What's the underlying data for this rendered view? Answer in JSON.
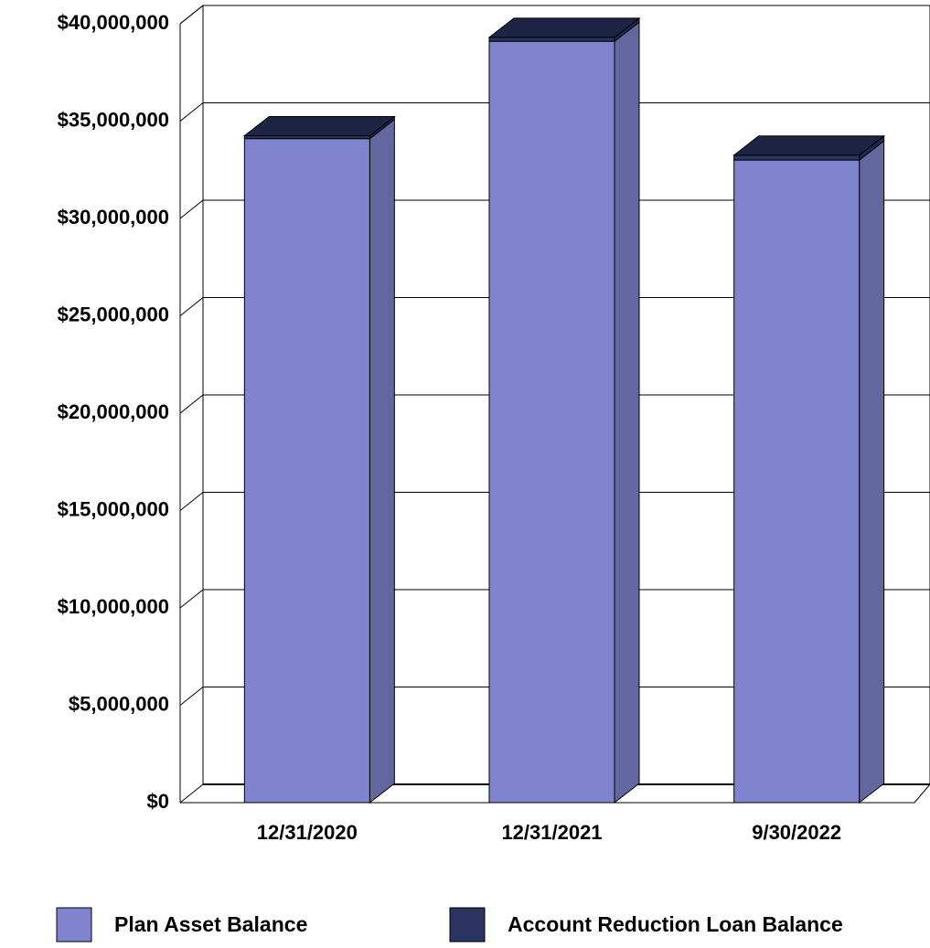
{
  "chart_data": {
    "type": "bar",
    "stacked": true,
    "three_d": true,
    "categories": [
      "12/31/2020",
      "12/31/2021",
      "9/30/2022"
    ],
    "series": [
      {
        "name": "Plan Asset Balance",
        "color": "#7f84cc",
        "values": [
          34100000,
          39100000,
          33000000
        ]
      },
      {
        "name": "Account Reduction Loan Balance",
        "color": "#2b3461",
        "values": [
          150000,
          200000,
          250000
        ]
      }
    ],
    "ylim": [
      0,
      40000000
    ],
    "yticks": [
      0,
      {
        "value": 5000000,
        "label": "$5,000,000"
      },
      {
        "value": 10000000,
        "label": "$10,000,000"
      },
      {
        "value": 15000000,
        "label": "$15,000,000"
      },
      {
        "value": 20000000,
        "label": "$20,000,000"
      },
      {
        "value": 25000000,
        "label": "$25,000,000"
      },
      {
        "value": 30000000,
        "label": "$30,000,000"
      },
      {
        "value": 35000000,
        "label": "$35,000,000"
      },
      {
        "value": 40000000,
        "label": "$40,000,000"
      }
    ],
    "zero_tick_label": "$0",
    "grid": true,
    "legend": "bottom"
  }
}
